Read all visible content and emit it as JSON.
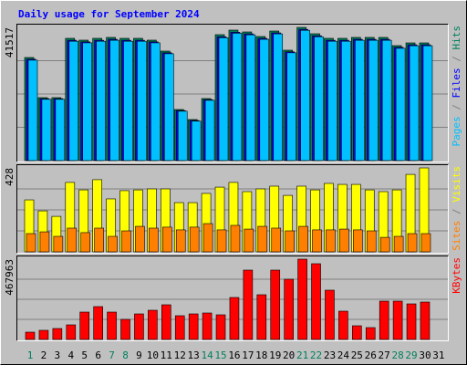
{
  "chart_data": [
    {
      "type": "bar",
      "title": "Daily usage for September 2024",
      "categories": [
        "1",
        "2",
        "3",
        "4",
        "5",
        "6",
        "7",
        "8",
        "9",
        "10",
        "11",
        "12",
        "13",
        "14",
        "15",
        "16",
        "17",
        "18",
        "19",
        "20",
        "21",
        "22",
        "23",
        "24",
        "25",
        "26",
        "27",
        "28",
        "29",
        "30",
        "31"
      ],
      "weekend_indices": [
        0,
        6,
        7,
        13,
        14,
        20,
        21,
        27,
        28
      ],
      "weekend_color": "#00805c",
      "ylim": [
        0,
        41517
      ],
      "yticks": [
        41517
      ],
      "series": [
        {
          "name": "Hits",
          "color": "#00805c",
          "values": [
            32133,
            19621,
            19621,
            38105,
            37536,
            38105,
            38390,
            38105,
            38105,
            37536,
            34124,
            15924,
            12796,
            19337,
            39243,
            40665,
            40096,
            38674,
            40380,
            34408,
            41517,
            39527,
            38105,
            38105,
            38390,
            38390,
            38390,
            35830,
            36683,
            36683,
            null
          ]
        },
        {
          "name": "Files",
          "color": "#0000ff",
          "values": [
            31600,
            19300,
            19300,
            37500,
            37000,
            37500,
            37800,
            37500,
            37500,
            37000,
            33600,
            15600,
            12500,
            19000,
            38600,
            40000,
            39500,
            38100,
            39800,
            33900,
            40900,
            38900,
            37500,
            37500,
            37800,
            37800,
            37800,
            35300,
            36100,
            36100,
            null
          ]
        },
        {
          "name": "Pages",
          "color": "#00c0ff",
          "values": [
            31300,
            19100,
            19100,
            37200,
            36700,
            37200,
            37500,
            37200,
            37200,
            36700,
            33300,
            15400,
            12300,
            18800,
            38300,
            39700,
            39200,
            37800,
            39500,
            33600,
            40600,
            38600,
            37200,
            37200,
            37500,
            37500,
            37500,
            35000,
            35800,
            35800,
            null
          ]
        }
      ]
    },
    {
      "type": "bar",
      "ylim": [
        0,
        428
      ],
      "yticks": [
        428
      ],
      "series": [
        {
          "name": "Visits",
          "color": "#ffff00",
          "values": [
            265,
            209,
            181,
            354,
            316,
            368,
            270,
            312,
            316,
            321,
            321,
            251,
            251,
            298,
            330,
            354,
            307,
            321,
            335,
            288,
            335,
            316,
            349,
            344,
            344,
            316,
            307,
            316,
            395,
            428,
            null
          ]
        },
        {
          "name": "Sites",
          "color": "#ff8000",
          "values": [
            93,
            102,
            79,
            121,
            98,
            121,
            79,
            107,
            130,
            121,
            126,
            112,
            126,
            144,
            112,
            135,
            116,
            130,
            121,
            107,
            130,
            112,
            112,
            116,
            112,
            107,
            74,
            79,
            93,
            93,
            null
          ]
        }
      ]
    },
    {
      "type": "bar",
      "ylim": [
        0,
        467963
      ],
      "yticks": [
        467963
      ],
      "series": [
        {
          "name": "KBytes",
          "color": "#ff0000",
          "values": [
            42540,
            53176,
            63811,
            85081,
            159533,
            191441,
            159533,
            116989,
            148897,
            170167,
            202075,
            138262,
            148897,
            154215,
            143580,
            244616,
            404146,
            260570,
            404146,
            350970,
            467963,
            441375,
            287158,
            164850,
            79764,
            69129,
            223345,
            223345,
            207391,
            218026,
            null
          ]
        }
      ]
    }
  ]
}
